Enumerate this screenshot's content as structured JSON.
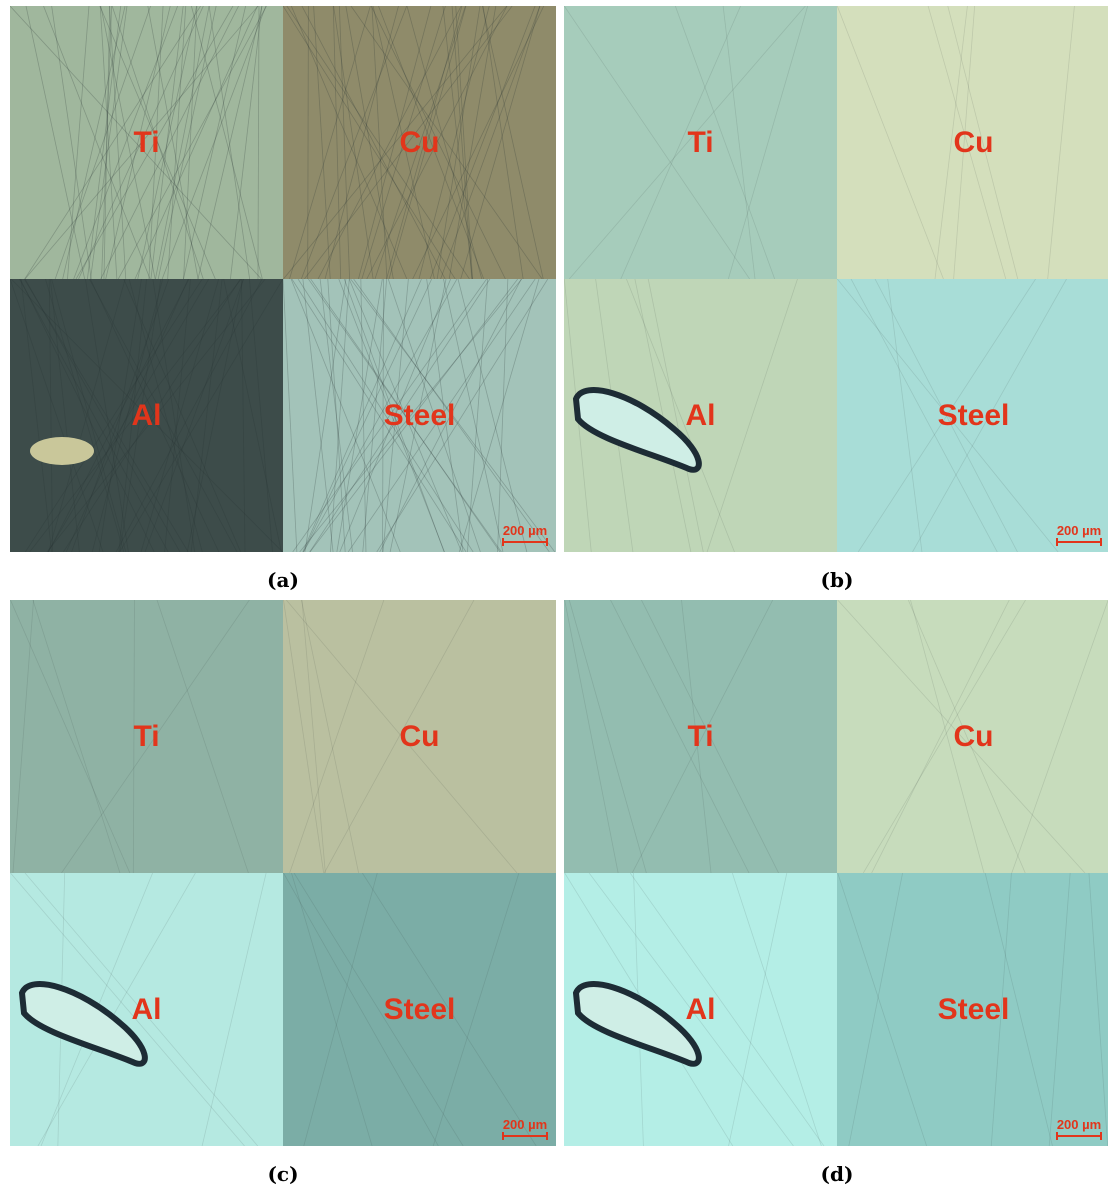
{
  "panels": [
    {
      "label": "(a)",
      "quadrants": [
        "Ti",
        "Cu",
        "Al",
        "Steel"
      ],
      "scale_bar": "200 µm"
    },
    {
      "label": "(b)",
      "quadrants": [
        "Ti",
        "Cu",
        "Al",
        "Steel"
      ],
      "scale_bar": "200 µm"
    },
    {
      "label": "(c)",
      "quadrants": [
        "Ti",
        "Cu",
        "Al",
        "Steel"
      ],
      "scale_bar": "200 µm"
    },
    {
      "label": "(d)",
      "quadrants": [
        "Ti",
        "Cu",
        "Al",
        "Steel"
      ],
      "scale_bar": "200 µm"
    }
  ]
}
